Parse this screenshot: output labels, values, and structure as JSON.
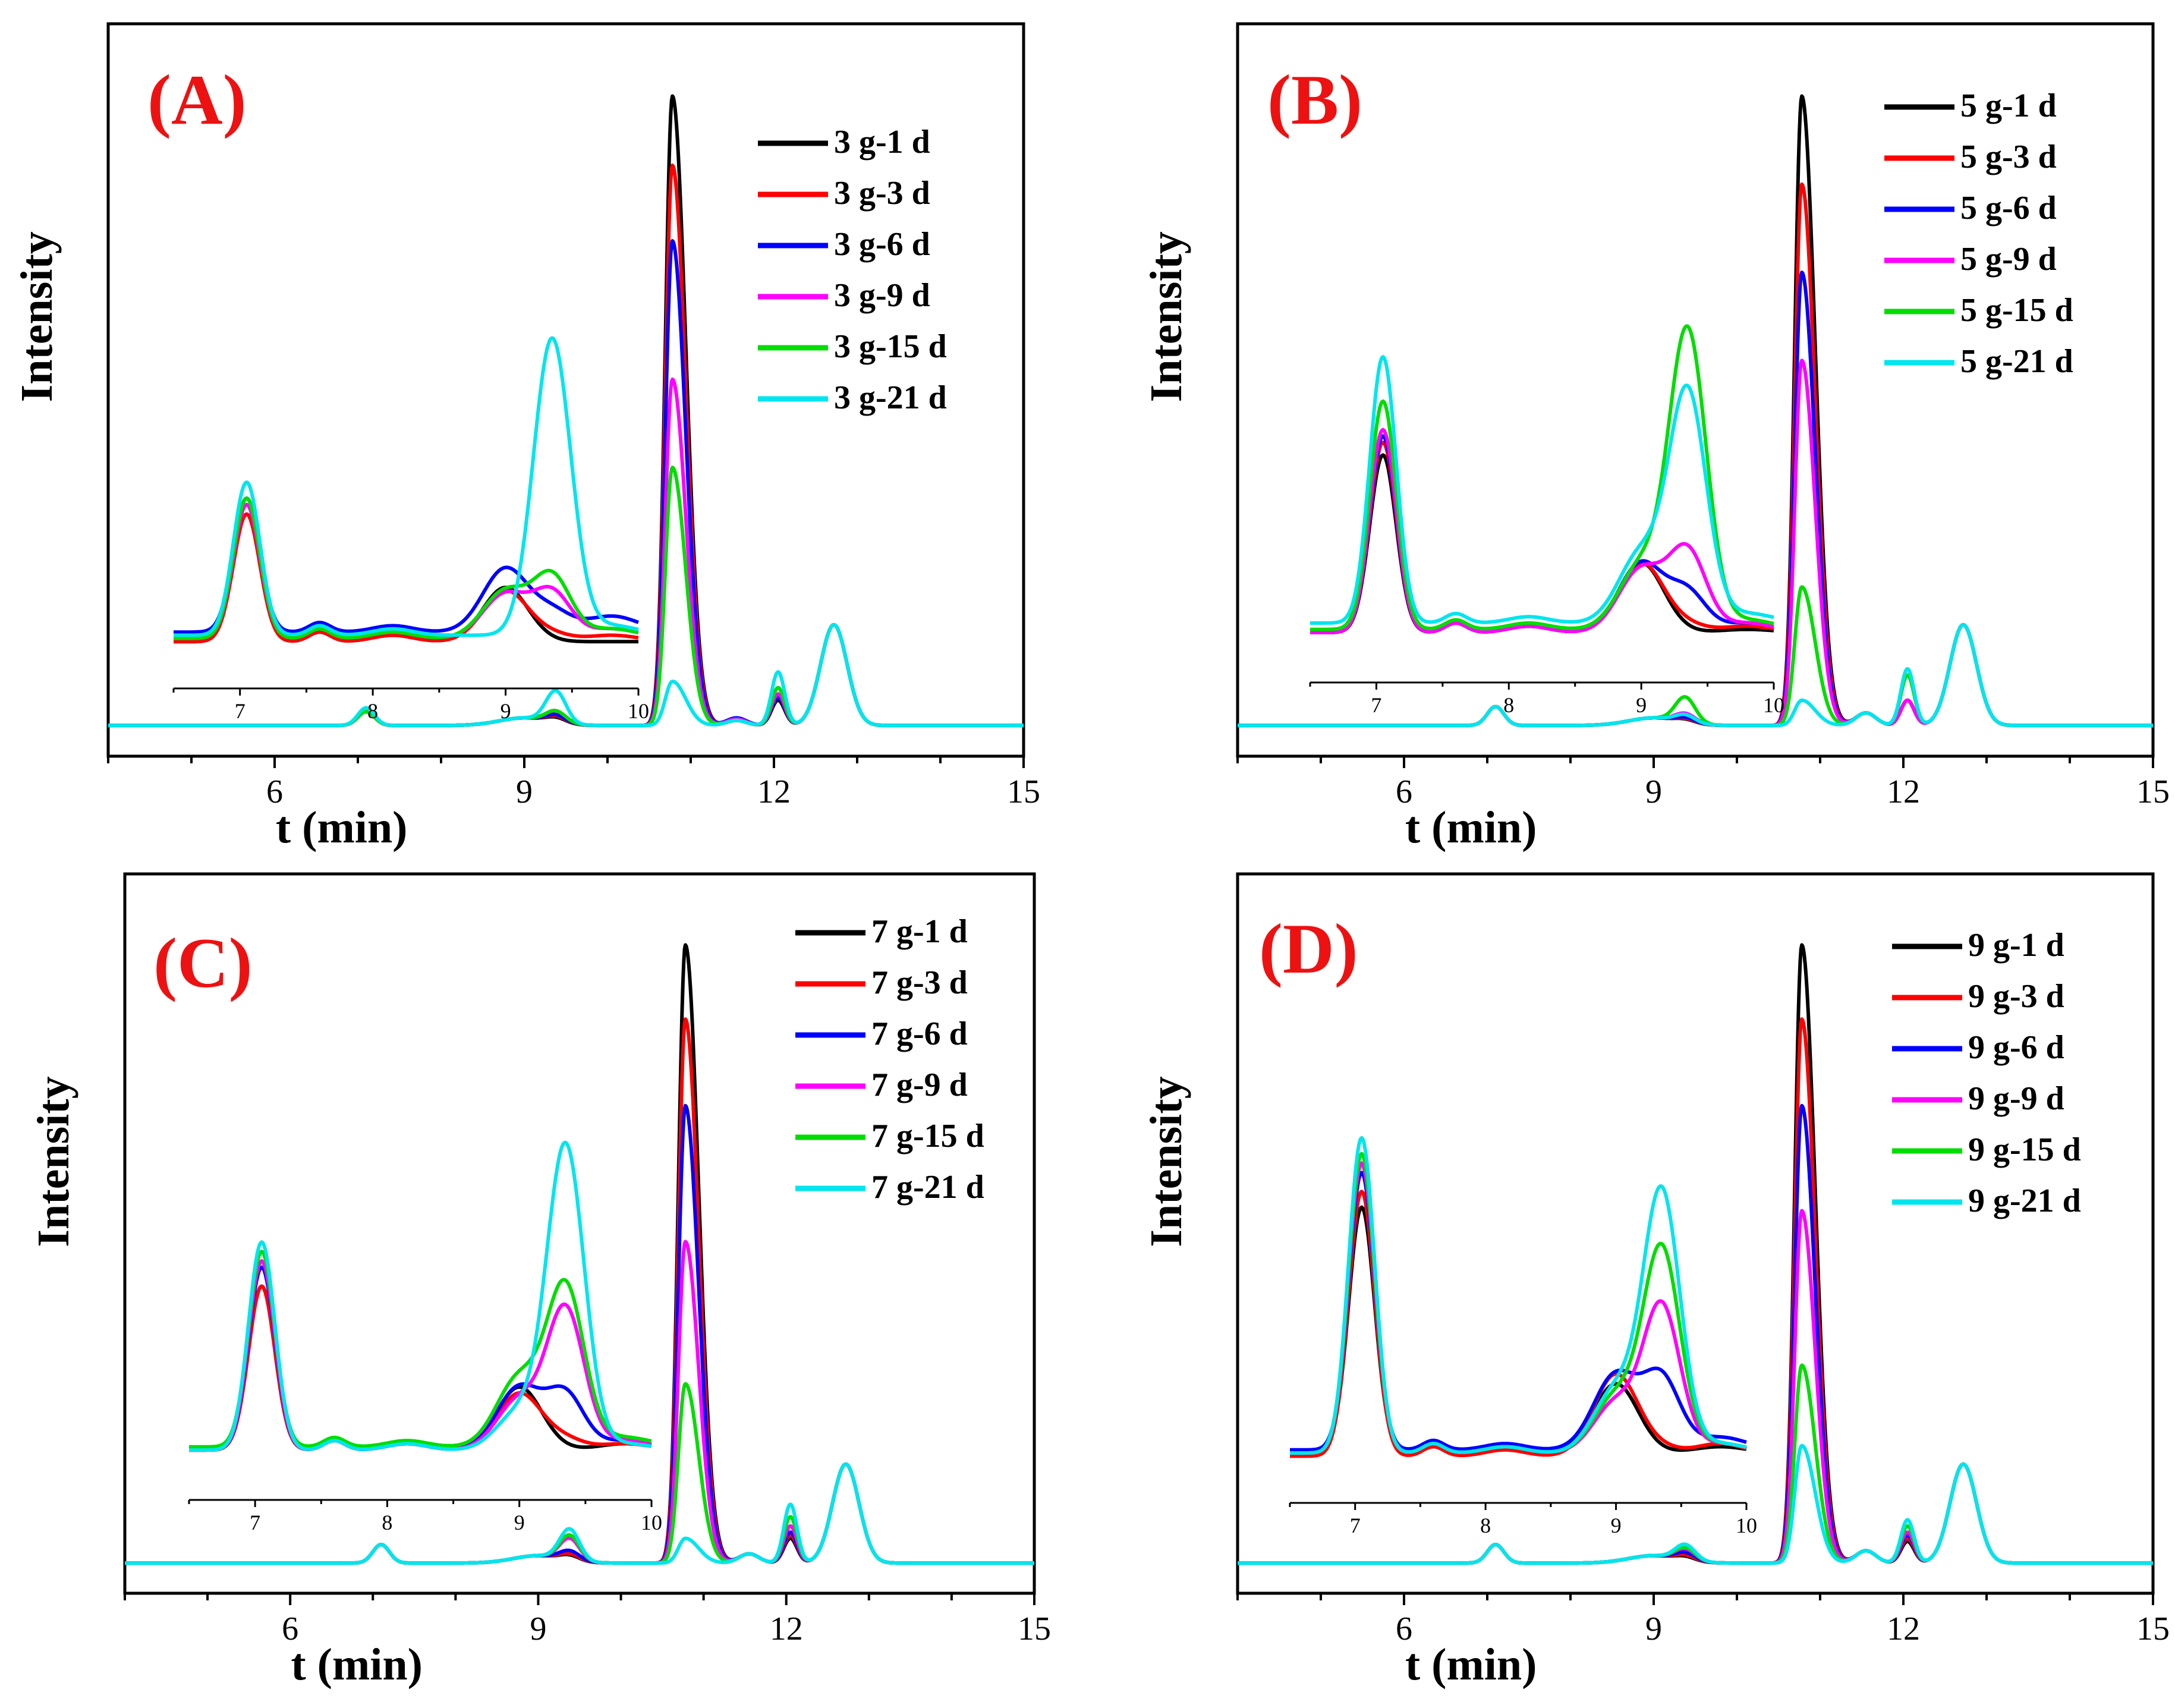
{
  "figure": {
    "x_axis_title": "t (min)",
    "y_axis_title": "Intensity",
    "series_colors": {
      "1 d": "#000000",
      "3 d": "#ff0000",
      "6 d": "#0000ff",
      "9 d": "#ff00ff",
      "15 d": "#00dd00",
      "21 d": "#00e5ee"
    }
  },
  "chart_data": [
    {
      "type": "line",
      "panel_label": "(A)",
      "title": "",
      "xlabel": "t (min)",
      "ylabel": "Intensity",
      "xlim": [
        4,
        15
      ],
      "x_ticks": [
        6,
        9,
        12,
        15
      ],
      "ylim": [
        0,
        1.08
      ],
      "legend": [
        "3 g-1 d",
        "3 g-3 d",
        "3 g-6 d",
        "3 g-9 d",
        "3 g-15 d",
        "3 g-21 d"
      ],
      "main_peaks": [
        {
          "name": "3 g-1 d",
          "values": [
            0.022,
            0.0,
            0.008,
            1.0,
            0.008,
            0.04,
            0.16
          ]
        },
        {
          "name": "3 g-3 d",
          "values": [
            0.022,
            0.0,
            0.01,
            0.89,
            0.008,
            0.045,
            0.16
          ]
        },
        {
          "name": "3 g-6 d",
          "values": [
            0.022,
            0.0,
            0.012,
            0.77,
            0.012,
            0.045,
            0.16
          ]
        },
        {
          "name": "3 g-9 d",
          "values": [
            0.022,
            0.0,
            0.018,
            0.55,
            0.01,
            0.05,
            0.16
          ]
        },
        {
          "name": "3 g-15 d",
          "values": [
            0.022,
            0.0,
            0.018,
            0.41,
            0.008,
            0.06,
            0.16
          ]
        },
        {
          "name": "3 g-21 d",
          "values": [
            0.028,
            0.0,
            0.05,
            0.07,
            0.008,
            0.085,
            0.16
          ]
        }
      ],
      "inset": {
        "xlim": [
          6.5,
          10
        ],
        "x_ticks": [
          7,
          8,
          9,
          10
        ],
        "series": [
          {
            "name": "3 g-1 d",
            "peak7": 0.4,
            "base": 0.02,
            "p9": 0.17,
            "p93": 0.0,
            "tail": 0.0
          },
          {
            "name": "3 g-3 d",
            "peak7": 0.4,
            "base": 0.02,
            "p9": 0.16,
            "p93": 0.02,
            "tail": 0.02
          },
          {
            "name": "3 g-6 d",
            "peak7": 0.42,
            "base": 0.05,
            "p9": 0.2,
            "p93": 0.06,
            "tail": 0.05
          },
          {
            "name": "3 g-9 d",
            "peak7": 0.42,
            "base": 0.03,
            "p9": 0.14,
            "p93": 0.14,
            "tail": 0.03
          },
          {
            "name": "3 g-15 d",
            "peak7": 0.44,
            "base": 0.03,
            "p9": 0.15,
            "p93": 0.19,
            "tail": 0.03
          },
          {
            "name": "3 g-21 d",
            "peak7": 0.48,
            "base": 0.04,
            "p9": 0.0,
            "p93": 0.93,
            "tail": 0.03
          }
        ]
      }
    },
    {
      "type": "line",
      "panel_label": "(B)",
      "title": "",
      "xlabel": "t (min)",
      "ylabel": "Intensity",
      "xlim": [
        4,
        15
      ],
      "x_ticks": [
        6,
        9,
        12,
        15
      ],
      "ylim": [
        0,
        1.08
      ],
      "legend": [
        "5 g-1 d",
        "5 g-3 d",
        "5 g-6 d",
        "5 g-9 d",
        "5 g-15 d",
        "5 g-21 d"
      ],
      "main_peaks": [
        {
          "name": "5 g-1 d",
          "values": [
            0.03,
            0.008,
            0.005,
            1.0,
            0.02,
            0.04,
            0.16
          ]
        },
        {
          "name": "5 g-3 d",
          "values": [
            0.03,
            0.008,
            0.006,
            0.86,
            0.02,
            0.04,
            0.16
          ]
        },
        {
          "name": "5 g-6 d",
          "values": [
            0.03,
            0.008,
            0.008,
            0.72,
            0.02,
            0.04,
            0.16
          ]
        },
        {
          "name": "5 g-9 d",
          "values": [
            0.03,
            0.008,
            0.014,
            0.58,
            0.02,
            0.04,
            0.16
          ]
        },
        {
          "name": "5 g-15 d",
          "values": [
            0.03,
            0.008,
            0.04,
            0.22,
            0.02,
            0.08,
            0.16
          ]
        },
        {
          "name": "5 g-21 d",
          "values": [
            0.03,
            0.008,
            0.012,
            0.04,
            0.02,
            0.09,
            0.16
          ]
        }
      ],
      "inset": {
        "xlim": [
          6.5,
          10
        ],
        "x_ticks": [
          7,
          8,
          9,
          10
        ],
        "series": [
          {
            "name": "5 g-1 d",
            "peak7": 0.56,
            "base": 0.03,
            "p9": 0.22,
            "p93": 0.0,
            "tail": 0.01
          },
          {
            "name": "5 g-3 d",
            "peak7": 0.6,
            "base": 0.03,
            "p9": 0.22,
            "p93": 0.02,
            "tail": 0.02
          },
          {
            "name": "5 g-6 d",
            "peak7": 0.62,
            "base": 0.03,
            "p9": 0.22,
            "p93": 0.12,
            "tail": 0.03
          },
          {
            "name": "5 g-9 d",
            "peak7": 0.64,
            "base": 0.03,
            "p9": 0.2,
            "p93": 0.25,
            "tail": 0.03
          },
          {
            "name": "5 g-15 d",
            "peak7": 0.72,
            "base": 0.04,
            "p9": 0.2,
            "p93": 0.93,
            "tail": 0.03
          },
          {
            "name": "5 g-21 d",
            "peak7": 0.84,
            "base": 0.06,
            "p9": 0.22,
            "p93": 0.72,
            "tail": 0.03
          }
        ]
      }
    },
    {
      "type": "line",
      "panel_label": "(C)",
      "title": "",
      "xlabel": "t (min)",
      "ylabel": "Intensity",
      "xlim": [
        4,
        15
      ],
      "x_ticks": [
        6,
        9,
        12,
        15
      ],
      "ylim": [
        0,
        1.08
      ],
      "legend": [
        "7 g-1 d",
        "7 g-3 d",
        "7 g-6 d",
        "7 g-9 d",
        "7 g-15 d",
        "7 g-21 d"
      ],
      "main_peaks": [
        {
          "name": "7 g-1 d",
          "values": [
            0.03,
            0.0,
            0.008,
            1.0,
            0.015,
            0.04,
            0.16
          ]
        },
        {
          "name": "7 g-3 d",
          "values": [
            0.03,
            0.0,
            0.01,
            0.88,
            0.015,
            0.045,
            0.16
          ]
        },
        {
          "name": "7 g-6 d",
          "values": [
            0.03,
            0.0,
            0.015,
            0.74,
            0.015,
            0.05,
            0.16
          ]
        },
        {
          "name": "7 g-9 d",
          "values": [
            0.03,
            0.0,
            0.035,
            0.52,
            0.015,
            0.06,
            0.16
          ]
        },
        {
          "name": "7 g-15 d",
          "values": [
            0.03,
            0.0,
            0.04,
            0.29,
            0.015,
            0.075,
            0.16
          ]
        },
        {
          "name": "7 g-21 d",
          "values": [
            0.03,
            0.0,
            0.05,
            0.04,
            0.015,
            0.095,
            0.16
          ]
        }
      ],
      "inset": {
        "xlim": [
          6.5,
          10
        ],
        "x_ticks": [
          7,
          8,
          9,
          10
        ],
        "series": [
          {
            "name": "7 g-1 d",
            "peak7": 0.52,
            "base": 0.03,
            "p9": 0.2,
            "p93": 0.0,
            "tail": 0.02
          },
          {
            "name": "7 g-3 d",
            "peak7": 0.52,
            "base": 0.03,
            "p9": 0.18,
            "p93": 0.03,
            "tail": 0.02
          },
          {
            "name": "7 g-6 d",
            "peak7": 0.58,
            "base": 0.03,
            "p9": 0.2,
            "p93": 0.17,
            "tail": 0.03
          },
          {
            "name": "7 g-9 d",
            "peak7": 0.6,
            "base": 0.03,
            "p9": 0.16,
            "p93": 0.44,
            "tail": 0.03
          },
          {
            "name": "7 g-15 d",
            "peak7": 0.62,
            "base": 0.04,
            "p9": 0.22,
            "p93": 0.5,
            "tail": 0.03
          },
          {
            "name": "7 g-21 d",
            "peak7": 0.66,
            "base": 0.03,
            "p9": 0.12,
            "p93": 0.96,
            "tail": 0.02
          }
        ]
      }
    },
    {
      "type": "line",
      "panel_label": "(D)",
      "title": "",
      "xlabel": "t (min)",
      "ylabel": "Intensity",
      "xlim": [
        4,
        15
      ],
      "x_ticks": [
        6,
        9,
        12,
        15
      ],
      "ylim": [
        0,
        1.08
      ],
      "legend": [
        "9 g-1 d",
        "9 g-3 d",
        "9 g-6 d",
        "9 g-9 d",
        "9 g-15 d",
        "9 g-21 d"
      ],
      "main_peaks": [
        {
          "name": "9 g-1 d",
          "values": [
            0.03,
            0.0,
            0.006,
            1.0,
            0.02,
            0.035,
            0.16
          ]
        },
        {
          "name": "9 g-3 d",
          "values": [
            0.03,
            0.0,
            0.008,
            0.88,
            0.02,
            0.04,
            0.16
          ]
        },
        {
          "name": "9 g-6 d",
          "values": [
            0.03,
            0.0,
            0.012,
            0.74,
            0.02,
            0.045,
            0.16
          ]
        },
        {
          "name": "9 g-9 d",
          "values": [
            0.03,
            0.0,
            0.018,
            0.57,
            0.02,
            0.05,
            0.16
          ]
        },
        {
          "name": "9 g-15 d",
          "values": [
            0.03,
            0.0,
            0.02,
            0.32,
            0.02,
            0.06,
            0.16
          ]
        },
        {
          "name": "9 g-21 d",
          "values": [
            0.03,
            0.0,
            0.025,
            0.19,
            0.02,
            0.07,
            0.16
          ]
        }
      ],
      "inset": {
        "xlim": [
          6.5,
          10
        ],
        "x_ticks": [
          7,
          8,
          9,
          10
        ],
        "series": [
          {
            "name": "9 g-1 d",
            "peak7": 0.78,
            "base": 0.03,
            "p9": 0.22,
            "p93": 0.0,
            "tail": 0.02
          },
          {
            "name": "9 g-3 d",
            "peak7": 0.84,
            "base": 0.02,
            "p9": 0.26,
            "p93": 0.02,
            "tail": 0.04
          },
          {
            "name": "9 g-6 d",
            "peak7": 0.88,
            "base": 0.04,
            "p9": 0.24,
            "p93": 0.22,
            "tail": 0.04
          },
          {
            "name": "9 g-9 d",
            "peak7": 0.92,
            "base": 0.03,
            "p9": 0.16,
            "p93": 0.46,
            "tail": 0.03
          },
          {
            "name": "9 g-15 d",
            "peak7": 0.95,
            "base": 0.03,
            "p9": 0.18,
            "p93": 0.64,
            "tail": 0.03
          },
          {
            "name": "9 g-21 d",
            "peak7": 1.0,
            "base": 0.03,
            "p9": 0.2,
            "p93": 0.82,
            "tail": 0.03
          }
        ]
      }
    }
  ]
}
